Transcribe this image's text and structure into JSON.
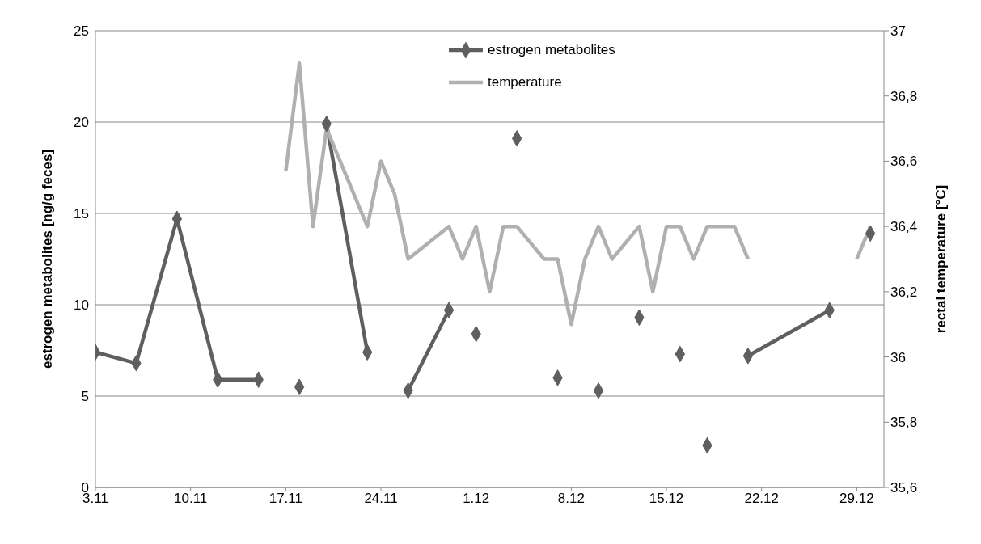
{
  "chart_data": {
    "type": "line",
    "xlabel": null,
    "ylabel": "estrogen metabolites [ng/g feces]",
    "y2label": "rectal temperature [°C]",
    "x": [
      "--11-03",
      "--11-06",
      "--11-09",
      "--11-12",
      "--11-15",
      "--11-17",
      "--11-18",
      "--11-19",
      "--11-20",
      "--11-23",
      "--11-24",
      "--11-25",
      "--11-26",
      "--11-29",
      "--11-30",
      "--12-01",
      "--12-02",
      "--12-03",
      "--12-04",
      "--12-06",
      "--12-07",
      "--12-08",
      "--12-09",
      "--12-10",
      "--12-11",
      "--12-13",
      "--12-14",
      "--12-15",
      "--12-16",
      "--12-17",
      "--12-18",
      "--12-20",
      "--12-21",
      "--12-27",
      "--12-29",
      "--12-30"
    ],
    "series": [
      {
        "name": "estrogen metabolites",
        "color": "#5f5f5f",
        "marker": "diamond",
        "values": [
          7.4,
          6.8,
          14.7,
          5.9,
          5.9,
          null,
          5.5,
          null,
          19.9,
          7.4,
          null,
          null,
          5.3,
          9.7,
          null,
          8.4,
          null,
          null,
          19.1,
          null,
          6.0,
          null,
          null,
          5.3,
          null,
          9.3,
          null,
          null,
          7.3,
          null,
          2.3,
          null,
          7.2,
          9.7,
          null,
          13.9
        ]
      },
      {
        "name": "temperature",
        "color": "#b0b0b0",
        "marker": "none",
        "axis": "y2",
        "values": [
          null,
          null,
          null,
          null,
          null,
          36.57,
          36.9,
          36.4,
          36.7,
          36.4,
          36.6,
          36.5,
          36.3,
          36.4,
          36.3,
          36.4,
          36.2,
          36.4,
          36.4,
          36.3,
          36.3,
          36.1,
          36.3,
          36.4,
          36.3,
          36.4,
          36.2,
          36.4,
          36.4,
          36.3,
          36.4,
          36.4,
          36.3,
          null,
          36.3,
          36.4
        ]
      }
    ],
    "xlim": [
      "--11-03",
      "--12-31"
    ],
    "xticks": [
      {
        "value": "--11-03",
        "label": "3.11"
      },
      {
        "value": "--11-10",
        "label": "10.11"
      },
      {
        "value": "--11-17",
        "label": "17.11"
      },
      {
        "value": "--11-24",
        "label": "24.11"
      },
      {
        "value": "--12-01",
        "label": "1.12"
      },
      {
        "value": "--12-08",
        "label": "8.12"
      },
      {
        "value": "--12-15",
        "label": "15.12"
      },
      {
        "value": "--12-22",
        "label": "22.12"
      },
      {
        "value": "--12-29",
        "label": "29.12"
      }
    ],
    "ylim": [
      0,
      25
    ],
    "yticks": [
      0,
      5,
      10,
      15,
      20,
      25
    ],
    "y2lim": [
      35.6,
      37
    ],
    "y2ticks": [
      {
        "value": 35.6,
        "label": "35,6"
      },
      {
        "value": 35.8,
        "label": "35,8"
      },
      36,
      {
        "value": 36.2,
        "label": "36,2"
      },
      {
        "value": 36.4,
        "label": "36,4"
      },
      {
        "value": 36.6,
        "label": "36,6"
      },
      {
        "value": 36.8,
        "label": "36,8"
      },
      37
    ],
    "grid": "y",
    "legend": "top",
    "line_style": "solid"
  }
}
